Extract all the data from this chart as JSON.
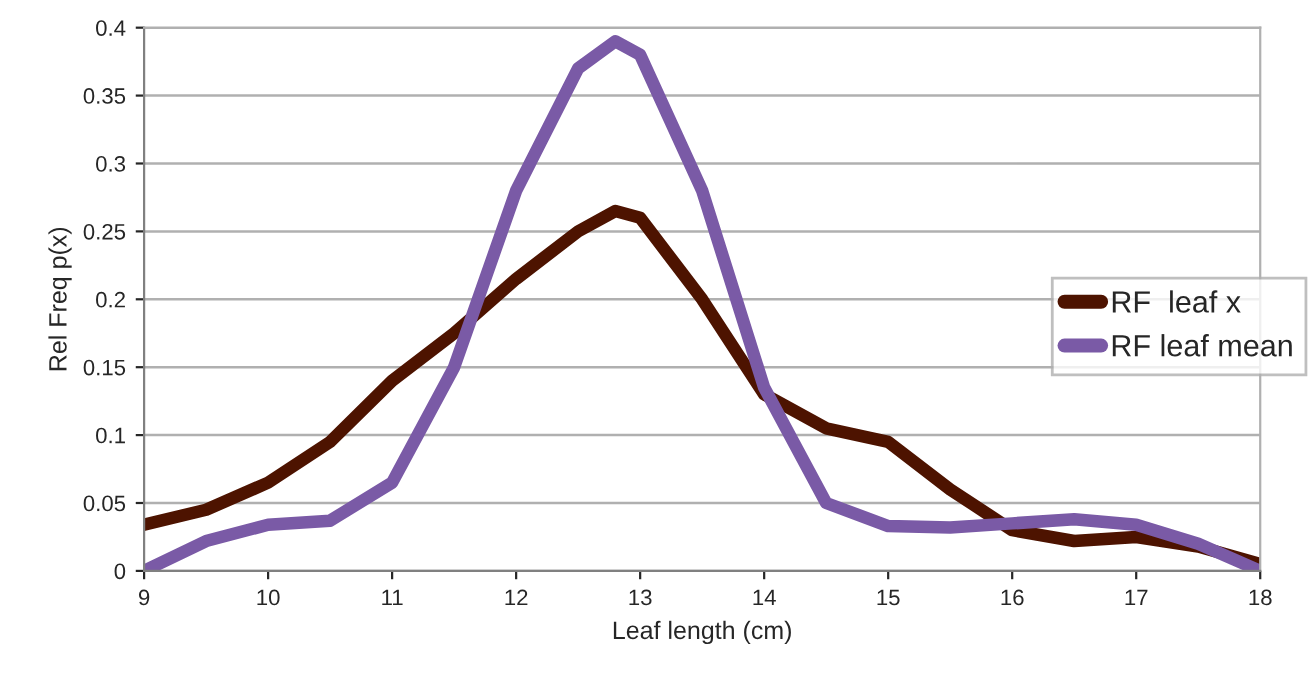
{
  "chart_data": {
    "type": "line",
    "xlabel": "Leaf length (cm)",
    "ylabel": "Rel Freq p(x)",
    "x": [
      9,
      9.5,
      10,
      10.5,
      11,
      11.5,
      12,
      12.5,
      12.8,
      13,
      13.5,
      14,
      14.5,
      15,
      15.5,
      16,
      16.5,
      17,
      17.5,
      18
    ],
    "series": [
      {
        "name": "RF  leaf x",
        "color": "#4d1300",
        "values": [
          0.034,
          0.045,
          0.065,
          0.095,
          0.14,
          0.175,
          0.215,
          0.25,
          0.265,
          0.26,
          0.2,
          0.13,
          0.105,
          0.095,
          0.06,
          0.03,
          0.022,
          0.025,
          0.018,
          0.005
        ]
      },
      {
        "name": "RF leaf mean",
        "color": "#7a5aa6",
        "values": [
          0,
          0.022,
          0.034,
          0.037,
          0.065,
          0.15,
          0.28,
          0.37,
          0.39,
          0.38,
          0.28,
          0.135,
          0.05,
          0.033,
          0.032,
          0.035,
          0.038,
          0.034,
          0.02,
          0
        ]
      }
    ],
    "xlim": [
      9,
      18
    ],
    "xticks": [
      9,
      10,
      11,
      12,
      13,
      14,
      15,
      16,
      17,
      18
    ],
    "ylim": [
      0,
      0.4
    ],
    "yticks": [
      0,
      0.05,
      0.1,
      0.15,
      0.2,
      0.25,
      0.3,
      0.35,
      0.4
    ],
    "grid": "y",
    "legend": "right",
    "marker": "none",
    "line_style": "solid"
  }
}
